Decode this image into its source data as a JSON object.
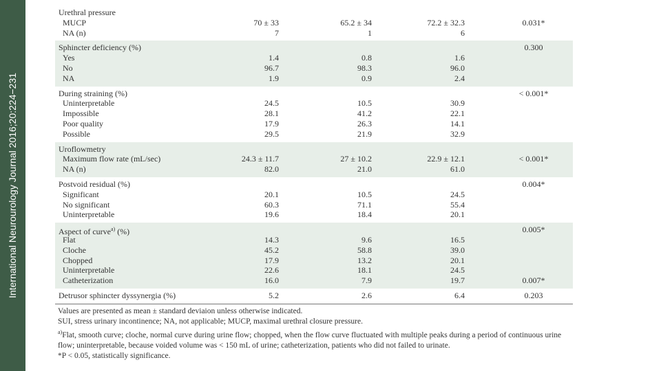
{
  "sidebar": "International Neurourology Journal 2016;20:224−231",
  "table": {
    "sections": [
      {
        "title": "Urethral pressure",
        "rows": [
          {
            "label": "MUCP",
            "values": [
              "70 ± 33",
              "65.2 ± 34",
              "72.2 ± 32.3"
            ],
            "p": "0.031*"
          },
          {
            "label": "NA (n)",
            "values": [
              "7",
              "1",
              "6"
            ]
          }
        ]
      },
      {
        "title": "Sphincter deficiency (%)",
        "p": "0.300",
        "rows": [
          {
            "label": "Yes",
            "values": [
              "1.4",
              "0.8",
              "1.6"
            ]
          },
          {
            "label": "No",
            "values": [
              "96.7",
              "98.3",
              "96.0"
            ]
          },
          {
            "label": "NA",
            "values": [
              "1.9",
              "0.9",
              "2.4"
            ]
          }
        ]
      },
      {
        "title": "During straining (%)",
        "p": "< 0.001*",
        "rows": [
          {
            "label": "Uninterpretable",
            "values": [
              "24.5",
              "10.5",
              "30.9"
            ]
          },
          {
            "label": "Impossible",
            "values": [
              "28.1",
              "41.2",
              "22.1"
            ]
          },
          {
            "label": "Poor quality",
            "values": [
              "17.9",
              "26.3",
              "14.1"
            ]
          },
          {
            "label": "Possible",
            "values": [
              "29.5",
              "21.9",
              "32.9"
            ]
          }
        ]
      },
      {
        "title": "Uroflowmetry",
        "rows": [
          {
            "label": "Maximum flow rate (mL/sec)",
            "values": [
              "24.3 ± 11.7",
              "27 ± 10.2",
              "22.9 ± 12.1"
            ],
            "p": "< 0.001*"
          },
          {
            "label": "NA (n)",
            "values": [
              "82.0",
              "21.0",
              "61.0"
            ]
          }
        ]
      },
      {
        "title": "Postvoid residual (%)",
        "p": "0.004*",
        "rows": [
          {
            "label": "Significant",
            "values": [
              "20.1",
              "10.5",
              "24.5"
            ]
          },
          {
            "label": "No significant",
            "values": [
              "60.3",
              "71.1",
              "55.4"
            ]
          },
          {
            "label": "Uninterpretable",
            "values": [
              "19.6",
              "18.4",
              "20.1"
            ]
          }
        ]
      },
      {
        "title": "Aspect of curve",
        "sup": "a)",
        "title_tail": " (%)",
        "p": "0.005*",
        "rows": [
          {
            "label": "Flat",
            "values": [
              "14.3",
              "9.6",
              "16.5"
            ]
          },
          {
            "label": "Cloche",
            "values": [
              "45.2",
              "58.8",
              "39.0"
            ]
          },
          {
            "label": "Chopped",
            "values": [
              "17.9",
              "13.2",
              "20.1"
            ]
          },
          {
            "label": "Uninterpretable",
            "values": [
              "22.6",
              "18.1",
              "24.5"
            ]
          },
          {
            "label": "Catheterization",
            "values": [
              "16.0",
              "7.9",
              "19.7"
            ],
            "p": "0.007*"
          }
        ]
      },
      {
        "title": "Detrusor sphincter dyssynergia (%)",
        "values": [
          "5.2",
          "2.6",
          "6.4"
        ],
        "p": "0.203",
        "rows": []
      }
    ]
  },
  "footnotes": [
    {
      "text": "Values are presented as mean ± standard deviaion unless otherwise indicated."
    },
    {
      "text": "SUI, stress urinary incontinence; NA, not applicable; MUCP, maximal urethral closure pressure."
    },
    {
      "sup": "a)",
      "text": "Flat, smooth curve; cloche, normal curve during urine flow; chopped, when the flow curve fluctuated with multiple peaks during a period of continuous urine flow; uninterpretable, because voided volume was < 150 mL of urine; catheterization, patients who did not failed to urinate."
    },
    {
      "text": "*P < 0.05, statistically significance."
    }
  ]
}
